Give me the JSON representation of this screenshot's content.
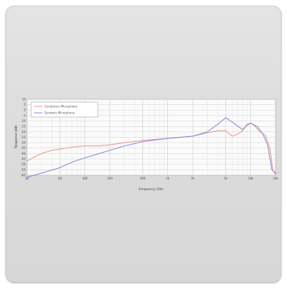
{
  "chart_data": {
    "type": "line",
    "xscale": "log",
    "xlabel": "Frequency (Hz)",
    "ylabel": "Response (dB)",
    "xlim": [
      20,
      20000
    ],
    "ylim": [
      -60,
      10
    ],
    "x_ticks": [
      20,
      50,
      100,
      200,
      500,
      1000,
      2000,
      5000,
      10000,
      20000
    ],
    "x_tick_labels": [
      "20",
      "50",
      "100",
      "200",
      "500",
      "1k",
      "2k",
      "5k",
      "10k",
      "20k"
    ],
    "y_ticks": [
      -60,
      -55,
      -50,
      -45,
      -40,
      -35,
      -30,
      -25,
      -20,
      -15,
      -10,
      -5,
      0,
      5,
      10
    ],
    "grid": true,
    "legend_position": "top-left",
    "series": [
      {
        "name": "Condenser Microphone",
        "color": "#ee9a8a",
        "points": [
          [
            20,
            -47
          ],
          [
            25,
            -43
          ],
          [
            30,
            -40
          ],
          [
            40,
            -37
          ],
          [
            50,
            -36
          ],
          [
            70,
            -34
          ],
          [
            100,
            -33
          ],
          [
            150,
            -33
          ],
          [
            200,
            -32
          ],
          [
            300,
            -30
          ],
          [
            500,
            -28
          ],
          [
            700,
            -27
          ],
          [
            1000,
            -26
          ],
          [
            1500,
            -25
          ],
          [
            2000,
            -24
          ],
          [
            3000,
            -21
          ],
          [
            4000,
            -19
          ],
          [
            5000,
            -19
          ],
          [
            6000,
            -24
          ],
          [
            7000,
            -22
          ],
          [
            8000,
            -19
          ],
          [
            9000,
            -13
          ],
          [
            10000,
            -12
          ],
          [
            11000,
            -14
          ],
          [
            13000,
            -20
          ],
          [
            15000,
            -23
          ],
          [
            17000,
            -35
          ],
          [
            18500,
            -55
          ],
          [
            20000,
            -60
          ]
        ]
      },
      {
        "name": "Dynamic Microphone",
        "color": "#8c8ce0",
        "points": [
          [
            20,
            -62
          ],
          [
            30,
            -58
          ],
          [
            50,
            -53
          ],
          [
            70,
            -48
          ],
          [
            100,
            -44
          ],
          [
            150,
            -40
          ],
          [
            200,
            -37
          ],
          [
            300,
            -33
          ],
          [
            500,
            -29
          ],
          [
            1000,
            -26
          ],
          [
            2000,
            -24
          ],
          [
            3000,
            -20
          ],
          [
            4000,
            -13
          ],
          [
            5000,
            -7
          ],
          [
            6000,
            -11
          ],
          [
            8000,
            -18
          ],
          [
            9000,
            -14
          ],
          [
            10000,
            -12
          ],
          [
            12000,
            -15
          ],
          [
            14000,
            -22
          ],
          [
            16000,
            -32
          ],
          [
            18000,
            -55
          ],
          [
            20000,
            -58
          ]
        ]
      }
    ]
  }
}
